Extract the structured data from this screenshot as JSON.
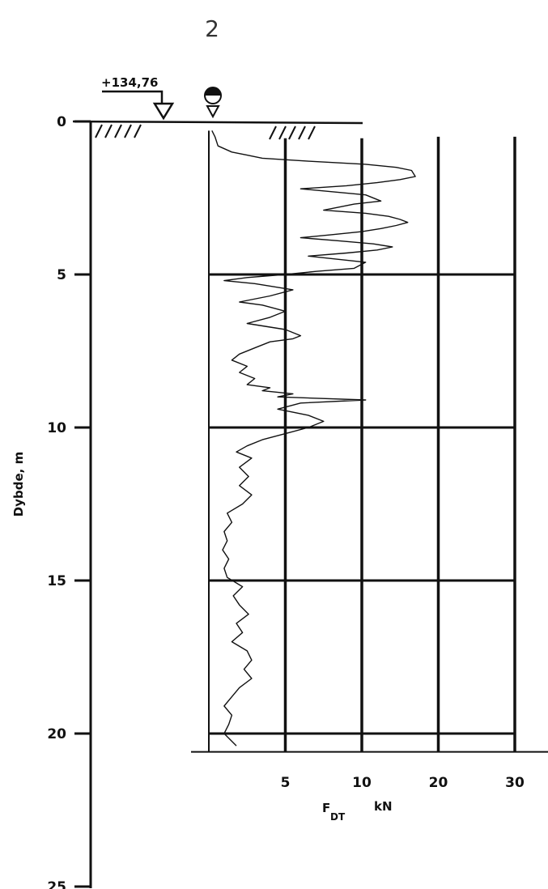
{
  "figure_number": "2",
  "elevation_label": "+134,76",
  "chart_data": {
    "type": "line",
    "title": "",
    "ylabel": "Dybde, m",
    "xlabel_main": "F",
    "xlabel_sub": "DT",
    "xlabel_unit": "kN",
    "y_ticks": [
      "0",
      "5",
      "10",
      "15",
      "20",
      "25"
    ],
    "x_ticks": [
      "5",
      "10",
      "20",
      "30"
    ],
    "ylim": [
      0,
      25
    ],
    "x_scale": "linear 0–10 kN, then 10 kN per grid column to 30 kN",
    "end_depth": 20.6,
    "groundwater_depth": 0.0,
    "series": [
      {
        "x": [
          0.2,
          0.4,
          0.6,
          1.5,
          2.5,
          3.5,
          6.5,
          10.5,
          14.5,
          16.5,
          17.0,
          15.0,
          12.0,
          9.0,
          6.0,
          10.5,
          12.5,
          9.5,
          7.5,
          10.5,
          13.5,
          15.0,
          16.0,
          14.5,
          12.5,
          10.0,
          8.0,
          6.0,
          8.5,
          11.5,
          14.0,
          12.0,
          9.0,
          6.5,
          10.5,
          9.5,
          7.0,
          5.0,
          2.5,
          1.0,
          3.0,
          5.5,
          4.0,
          2.0,
          3.5,
          5.0,
          4.0,
          2.5,
          5.0,
          6.0,
          5.5,
          4.0,
          3.0,
          2.0,
          1.5,
          2.5,
          2.0,
          3.0,
          2.5,
          4.0,
          3.5,
          5.5,
          4.5,
          10.5,
          6.0,
          4.5,
          6.5,
          7.5,
          6.5,
          5.0,
          3.5,
          2.5,
          1.8,
          2.8,
          2.0,
          2.6,
          2.0,
          2.8,
          2.2,
          1.2,
          1.5,
          1.0,
          1.2,
          0.9,
          1.3,
          1.0,
          1.2,
          2.2,
          1.6,
          2.0,
          2.6,
          1.8,
          2.2,
          1.5,
          2.5,
          2.8,
          2.3,
          2.8,
          2.0,
          1.5,
          1.0,
          1.5,
          1.3,
          1.0,
          1.8
        ],
        "y": [
          0.3,
          0.5,
          0.8,
          1.0,
          1.1,
          1.2,
          1.3,
          1.4,
          1.5,
          1.6,
          1.8,
          1.9,
          2.0,
          2.1,
          2.2,
          2.4,
          2.6,
          2.7,
          2.9,
          3.0,
          3.1,
          3.2,
          3.3,
          3.4,
          3.5,
          3.6,
          3.7,
          3.8,
          3.9,
          4.0,
          4.1,
          4.2,
          4.3,
          4.4,
          4.6,
          4.8,
          4.9,
          5.0,
          5.1,
          5.2,
          5.3,
          5.5,
          5.7,
          5.9,
          6.0,
          6.2,
          6.4,
          6.6,
          6.8,
          7.0,
          7.1,
          7.2,
          7.4,
          7.6,
          7.8,
          8.0,
          8.2,
          8.4,
          8.6,
          8.7,
          8.8,
          8.9,
          9.0,
          9.1,
          9.2,
          9.4,
          9.6,
          9.8,
          10.0,
          10.2,
          10.4,
          10.6,
          10.8,
          11.0,
          11.3,
          11.6,
          11.9,
          12.2,
          12.5,
          12.8,
          13.1,
          13.4,
          13.7,
          14.0,
          14.3,
          14.6,
          14.9,
          15.2,
          15.5,
          15.8,
          16.1,
          16.4,
          16.7,
          17.0,
          17.3,
          17.6,
          17.9,
          18.2,
          18.5,
          18.8,
          19.1,
          19.4,
          19.7,
          20.0,
          20.4
        ]
      }
    ]
  }
}
